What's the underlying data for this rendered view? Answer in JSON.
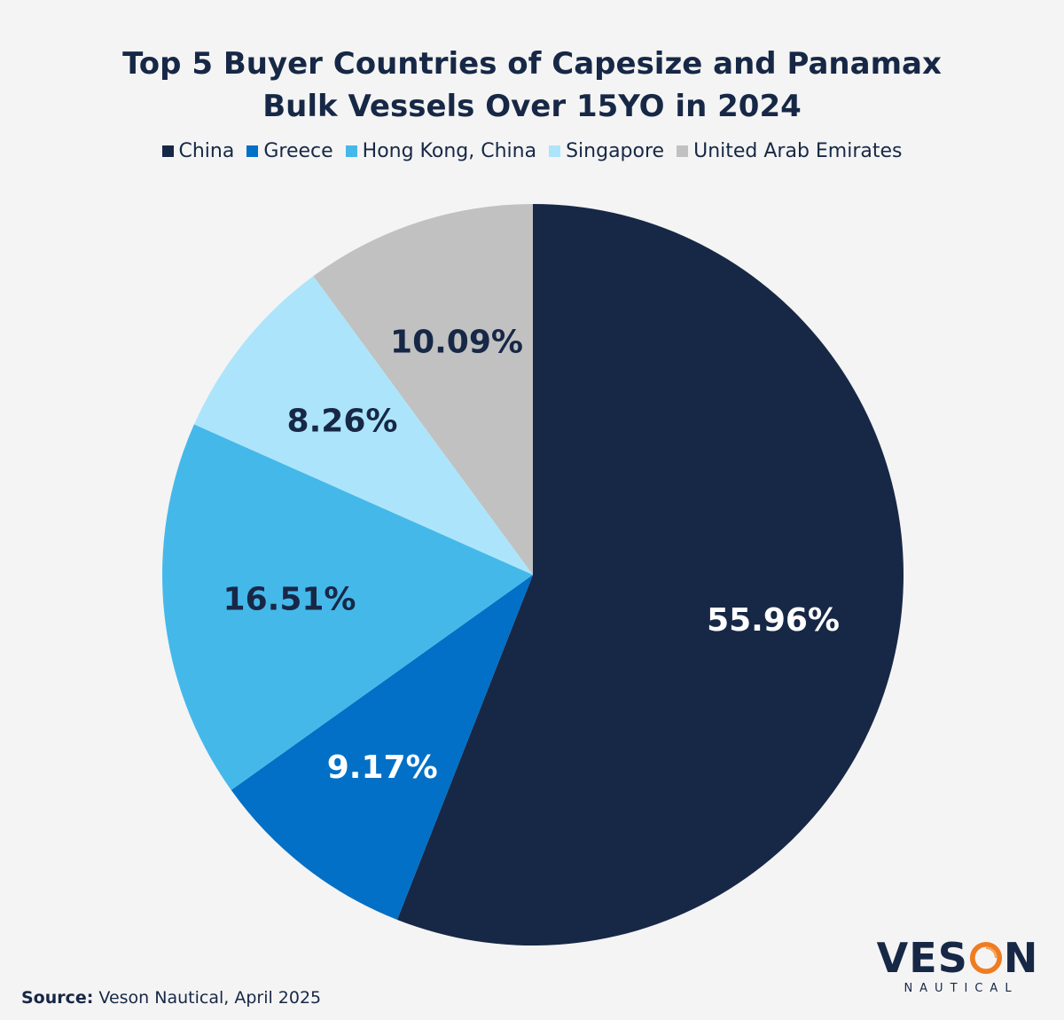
{
  "chart_data": {
    "type": "pie",
    "title_lines": [
      "Top 5 Buyer Countries of Capesize and Panamax",
      "Bulk Vessels Over 15YO in 2024"
    ],
    "series": [
      {
        "name": "China",
        "value": 55.96,
        "label": "55.96%",
        "color": "#172846",
        "label_color": "#ffffff"
      },
      {
        "name": "Greece",
        "value": 9.17,
        "label": "9.17%",
        "color": "#0270c6",
        "label_color": "#ffffff"
      },
      {
        "name": "Hong Kong, China",
        "value": 16.51,
        "label": "16.51%",
        "color": "#45b8ea",
        "label_color": "#172846"
      },
      {
        "name": "Singapore",
        "value": 8.26,
        "label": "8.26%",
        "color": "#ace5fb",
        "label_color": "#172846"
      },
      {
        "name": "United Arab Emirates",
        "value": 10.09,
        "label": "10.09%",
        "color": "#c1c1c1",
        "label_color": "#172846"
      }
    ],
    "legend_position": "top",
    "start_angle": "12 o'clock",
    "direction": "clockwise"
  },
  "source": {
    "label": "Source:",
    "text": " Veson Nautical, April 2025"
  },
  "logo": {
    "word_left": "VES",
    "word_right": "N",
    "subtitle": "NAUTICAL",
    "accent_color": "#f07c21"
  }
}
